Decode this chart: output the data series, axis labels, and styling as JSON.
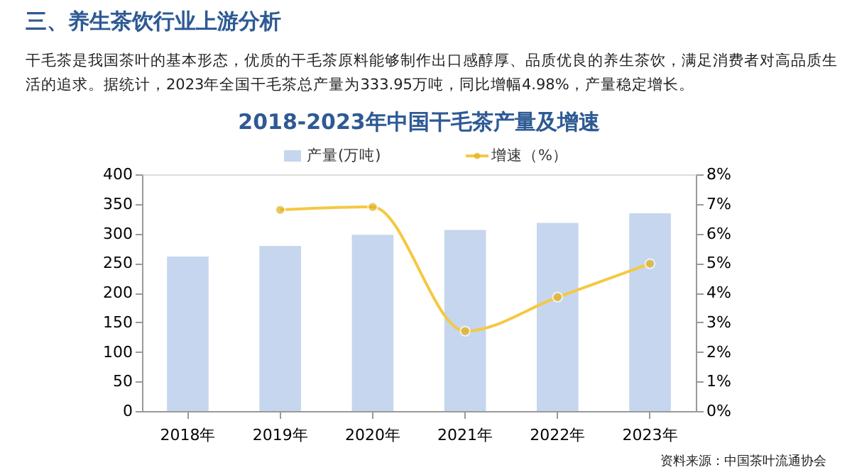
{
  "chart_data": {
    "type": "bar",
    "title": "2018-2023年中国干毛茶产量及增速",
    "subtitle": "干毛茶是我国茶叶的基本形态，优质的干毛茶原料能够制作出口感醇厚、品质优良的养生茶饮，满足消费者对高品质生活的追求。据统计，2023年全国干毛茶总产量为333.95万吨，同比增幅4.98%，产量稳定增长。",
    "annotations": [
      "三、养生茶饮行业上游分析",
      "资料来源：中国茶叶流通协会"
    ],
    "categories": [
      "2018年",
      "2019年",
      "2020年",
      "2021年",
      "2022年",
      "2023年"
    ],
    "series": [
      {
        "name": "产量(万吨)",
        "color": "#c5d6ee",
        "values": [
          261,
          279,
          298,
          306,
          318,
          334
        ]
      },
      {
        "name": "增速（%）",
        "type": "line",
        "axis": "y2",
        "color": "#f5c842",
        "marker": "circle",
        "values": [
          null,
          6.8,
          6.9,
          2.7,
          3.85,
          4.98
        ]
      }
    ],
    "ylim": [
      0,
      400
    ],
    "yticks": [
      0,
      50,
      100,
      150,
      200,
      250,
      300,
      350,
      400
    ],
    "y2lim": [
      0,
      8
    ],
    "y2ticks": [
      {
        "value": 0,
        "label": "0%"
      },
      {
        "value": 1,
        "label": "1%"
      },
      {
        "value": 2,
        "label": "2%"
      },
      {
        "value": 3,
        "label": "3%"
      },
      {
        "value": 4,
        "label": "4%"
      },
      {
        "value": 5,
        "label": "5%"
      },
      {
        "value": 6,
        "label": "6%"
      },
      {
        "value": 7,
        "label": "7%"
      },
      {
        "value": 8,
        "label": "8%"
      }
    ],
    "grid": false,
    "legend": "top"
  }
}
